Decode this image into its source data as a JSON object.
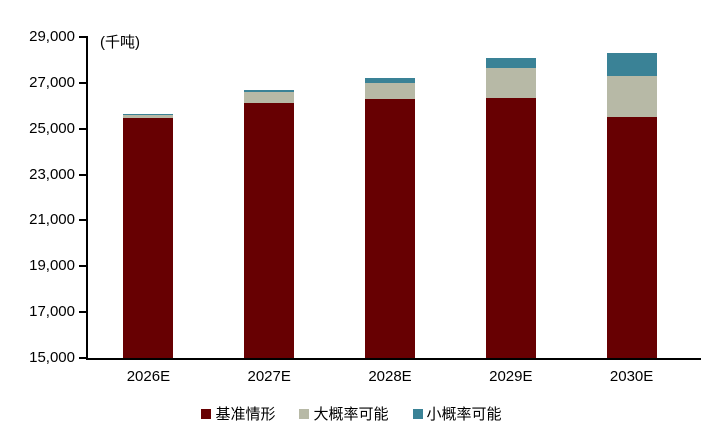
{
  "chart_data": {
    "type": "bar",
    "stacked": true,
    "title": "",
    "xlabel": "",
    "ylabel": "(千吨)",
    "unit_label": "(千吨)",
    "categories": [
      "2026E",
      "2027E",
      "2028E",
      "2029E",
      "2030E"
    ],
    "series": [
      {
        "key": "base",
        "name": "基准情形",
        "color": "#670002",
        "values": [
          25450,
          26100,
          26300,
          26350,
          25500
        ]
      },
      {
        "key": "likely",
        "name": "大概率可能",
        "color": "#B7B9A6",
        "values": [
          150,
          500,
          700,
          1300,
          1800
        ]
      },
      {
        "key": "small",
        "name": "小概率可能",
        "color": "#3A8296",
        "values": [
          50,
          100,
          200,
          450,
          1000
        ]
      }
    ],
    "totals": [
      25650,
      26700,
      27200,
      28100,
      28300
    ],
    "ylim": [
      15000,
      29000
    ],
    "ytick_step": 2000,
    "ytick_labels": [
      "15,000",
      "17,000",
      "19,000",
      "21,000",
      "23,000",
      "25,000",
      "27,000",
      "29,000"
    ],
    "grid": false,
    "legend_position": "bottom-center",
    "axis_color": "#000000"
  }
}
